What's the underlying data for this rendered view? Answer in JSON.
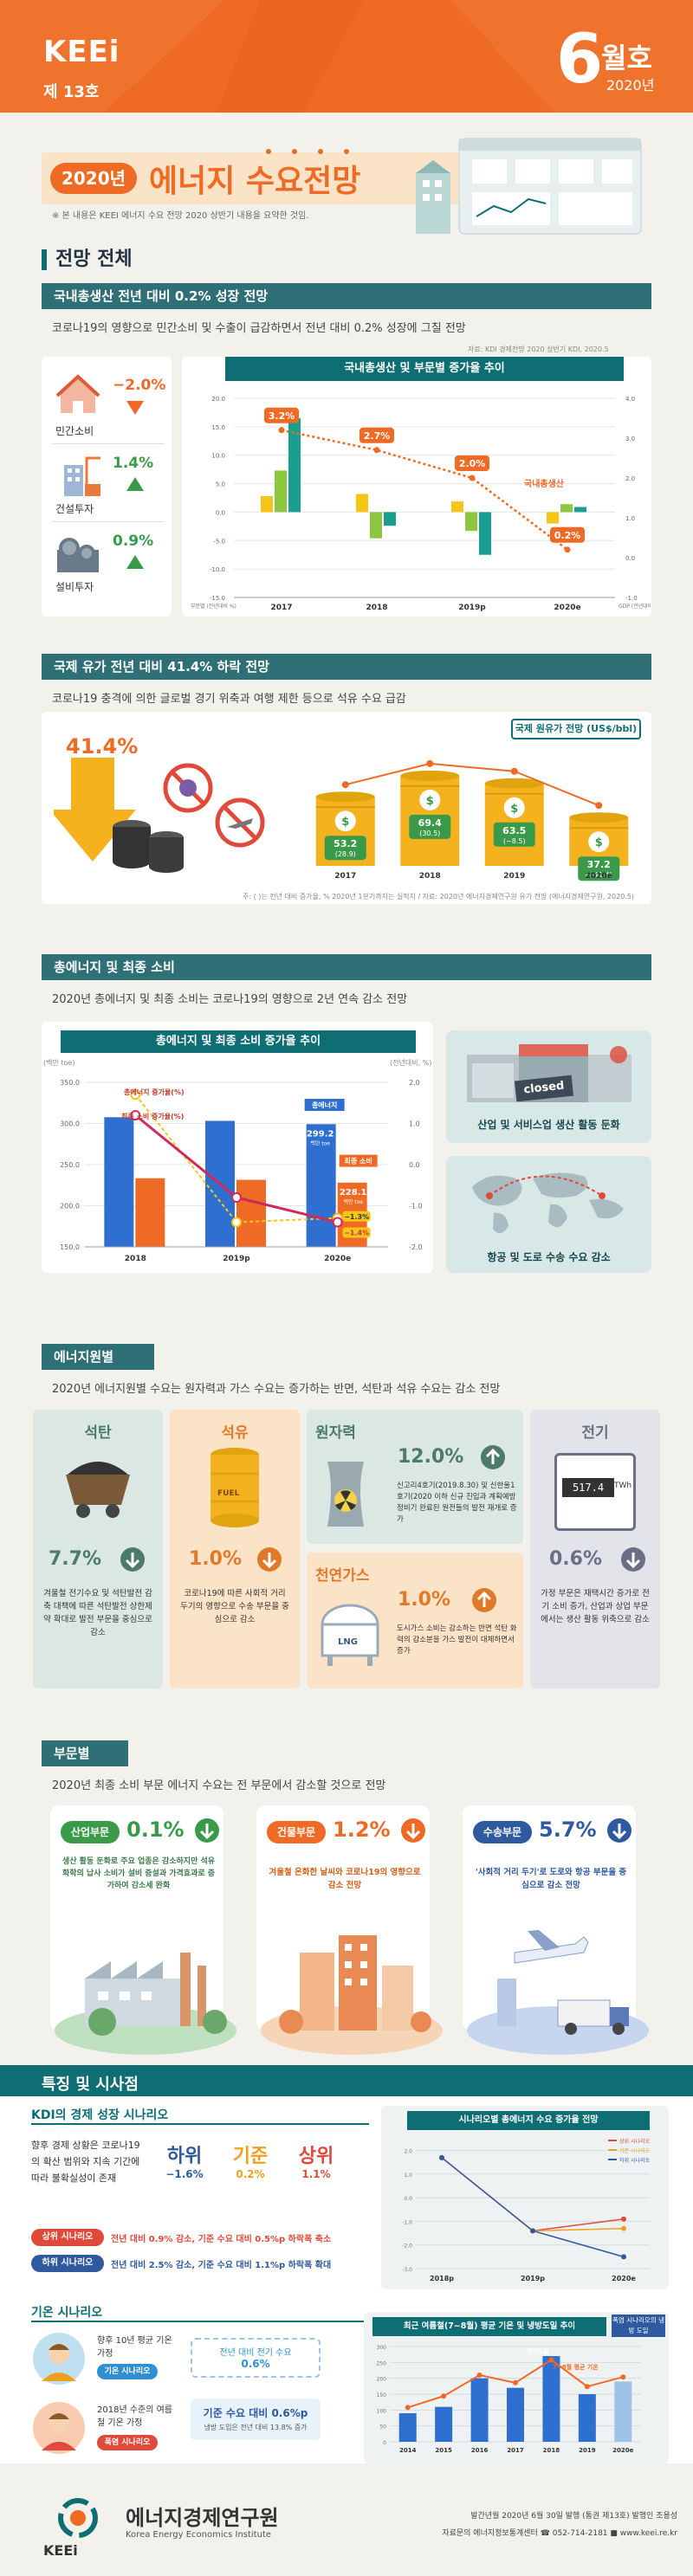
{
  "header": {
    "logo": "KEEi",
    "issue": "제 13호",
    "month_num": "6",
    "month_txt": "월호",
    "year": "2020년"
  },
  "title": {
    "year_badge": "2020년",
    "main": "에너지 수요전망",
    "note": "※ 본 내용은 KEEI 에너지 수요 전망 2020 상반기 내용을 요약한 것임."
  },
  "outlook": {
    "heading": "전망 전체",
    "gdp": {
      "band": "국내총생산 전년 대비 0.2% 성장 전망",
      "desc": "코로나19의 영향으로 민간소비 및 수출이 급감하면서 전년 대비 0.2% 성장에 그칠 전망",
      "source": "자료: KDI 경제전망 2020 상반기 KDI, 2020.5",
      "items": [
        {
          "label": "민간소비",
          "value": "−2.0%"
        },
        {
          "label": "건설투자",
          "value": "1.4%"
        },
        {
          "label": "설비투자",
          "value": "0.9%"
        }
      ]
    },
    "oil": {
      "band": "국제 유가 전년 대비 41.4% 하락 전망",
      "desc": "코로나19 충격에 의한 글로벌 경기 위축과 여행 제한 등으로 석유 수요 급감",
      "big_value": "41.4%",
      "chart_title": "국제 원유가 전망 (US$/bbl)",
      "note": "주: ( )는 전년 대비 증가율, % 2020년 1분기까지는 실적치 / 자료: 2020년 에너지경제연구원 유가 전망 (에너지경제연구원, 2020.5)"
    },
    "total": {
      "band": "총에너지 및 최종 소비",
      "desc": "2020년 총에너지 및 최종 소비는 코로나19의 영향으로 2년 연속 감소 전망",
      "chart_title": "총에너지 및 최종 소비 증가율 추이",
      "y_left": "(백만 toe)",
      "y_right": "(전년대비, %)",
      "legend_total": "총에너지 증가율(%)",
      "legend_final": "최종 소비 증가율(%)",
      "label_total": "총에너지",
      "label_final": "최종 소비",
      "unit": "백만 toe",
      "box1": "산업 및 서비스업 생산 활동 둔화",
      "box1_sign": "closed",
      "box2": "항공 및 도로 수송 수요 감소"
    }
  },
  "sources": {
    "band": "에너지원별",
    "desc": "2020년 에너지원별 수요는 원자력과 가스 수요는 증가하는 반면, 석탄과 석유 수요는 감소 전망",
    "items": [
      {
        "name": "석탄",
        "value": "7.7%",
        "text": "겨울철 전기수요 및 석탄발전 감축 대책에 따른 석탄발전 상한제약 확대로 발전 부문을 중심으로 감소"
      },
      {
        "name": "석유",
        "value": "1.0%",
        "text": "코로나19에 따른 사회적 거리두기의 영향으로 수송 부문을 중심으로 감소",
        "tag": "FUEL"
      },
      {
        "name": "원자력",
        "value": "12.0%",
        "text": "신고리4호기(2019.8.30) 및 신한울1호기(2020 이하 신규 진입과 계획예방정비기 완료된 원전들의 발전 재개로 증가"
      },
      {
        "name": "천연가스",
        "value": "1.0%",
        "text": "도시가스 소비는 감소하는 반면 석탄 화력의 감소분을 가스 발전이 대체하면서 증가",
        "tag": "LNG"
      },
      {
        "name": "전기",
        "value": "0.6%",
        "text": "가정 부문은 재택시간 증가로 전기 소비 증가, 산업과 상업 부문에서는 생산 활동 위축으로 감소",
        "meter": "517.4",
        "meter_unit": "TWh"
      }
    ]
  },
  "sectors": {
    "band": "부문별",
    "desc": "2020년 최종 소비 부문 에너지 수요는 전 부문에서 감소할 것으로 전망",
    "items": [
      {
        "name": "산업부문",
        "value": "0.1%",
        "text": "생산 활동 둔화로 주요 업종은 감소하지만 석유화학의 납사 소비가 설비 증설과 가격효과로 증가하여 감소세 완화"
      },
      {
        "name": "건물부문",
        "value": "1.2%",
        "text": "겨울철 온화한 날씨와 코로나19의 영향으로 감소 전망"
      },
      {
        "name": "수송부문",
        "value": "5.7%",
        "text": "'사회적 거리 두기'로 도로와 항공 부문을 중심으로 감소 전망"
      }
    ]
  },
  "features": {
    "heading": "특징 및 시사점",
    "kdi": {
      "band": "KDI의 경제 성장 시나리오",
      "desc": "향후 경제 상황은 코로나19의 확산 범위와 지속 기간에 따라 불확실성이 존재",
      "scenarios": [
        {
          "name": "하위",
          "value": "−1.6%"
        },
        {
          "name": "기준",
          "value": "0.2%"
        },
        {
          "name": "상위",
          "value": "1.1%"
        }
      ],
      "upper_tag": "상위 시나리오",
      "upper_text": "전년 대비 0.9% 감소, 기준 수요 대비 0.5%p 하락폭 축소",
      "lower_tag": "하위 시나리오",
      "lower_text": "전년 대비 2.5% 감소, 기준 수요 대비 1.1%p 하락폭 확대",
      "chart_title": "시나리오별 총에너지 수요 증가율 전망",
      "legend": [
        "상위 시나리오",
        "기준 시나리오",
        "하위 시나리오"
      ],
      "x": [
        "2018p",
        "2019p",
        "2020e"
      ]
    },
    "climate": {
      "band": "기온 시나리오",
      "p1_label": "향후 10년 평균 기온 가정",
      "p1_tag": "기온 시나리오",
      "p2_label": "2018년 수준의 여름철 기온 가정",
      "p2_tag": "폭염 시나리오",
      "p1_value_title": "전년 대비 전기 수요",
      "p1_value": "0.6%",
      "p2_value_title": "기준 수요 대비 0.6%p",
      "p2_value_note": "냉방 도입은 전년 대비 13.8% 증가",
      "chart_title": "최근 여름철(7~8월) 평균 기온 및 냉방도일 추이",
      "series1": "냉방도일",
      "series2": "7~8월 평균 기온",
      "note_box": "폭염 시나리오의 냉방 도일"
    }
  },
  "footer": {
    "org": "에너지경제연구원",
    "org_en": "Korea Energy Economics Institute",
    "line1": "발간년월 2020년 6월 30일 발행 (통권 제13호) 발행인 조용성",
    "line2": "자료문의 에너지정보통계센터 ☎ 052-714-2181 ■ www.keei.re.kr"
  },
  "chart_data": [
    {
      "type": "bar",
      "title": "국내총생산 및 부문별 증가율 추이",
      "categories": [
        "2017",
        "2018",
        "2019p",
        "2020e"
      ],
      "ylabel": "부문별 증가율(%)",
      "ylim": [
        -15,
        20
      ],
      "y2lim": [
        -1,
        4
      ],
      "series": [
        {
          "name": "민간소비",
          "values": [
            2.8,
            3.2,
            1.9,
            -2.0
          ]
        },
        {
          "name": "건설투자",
          "values": [
            7.3,
            -4.6,
            -3.3,
            1.4
          ]
        },
        {
          "name": "설비투자",
          "values": [
            16.5,
            -2.4,
            -7.5,
            0.9
          ]
        }
      ],
      "line": {
        "name": "국내총생산",
        "values": [
          3.2,
          2.7,
          2.0,
          0.2
        ],
        "labels": [
          "3.2%",
          "2.7%",
          "2.0%",
          "0.2%"
        ]
      },
      "xlabel_left": "부문별 (전년대비 %)",
      "xlabel_right": "GDP (전년대비 %)"
    },
    {
      "type": "bar",
      "title": "국제 원유가 전망 (US$/bbl)",
      "categories": [
        "2017",
        "2018",
        "2019",
        "2020e"
      ],
      "values": [
        53.2,
        69.4,
        63.5,
        37.2
      ],
      "labels": [
        "53.2",
        "69.4",
        "63.5",
        "37.2"
      ],
      "growth": [
        "(28.9)",
        "(30.5)",
        "(−8.5)",
        "(−41.4)"
      ]
    },
    {
      "type": "bar",
      "title": "총에너지 및 최종 소비 증가율 추이",
      "categories": [
        "2018",
        "2019p",
        "2020e"
      ],
      "ylim": [
        150,
        350
      ],
      "y2lim": [
        -2,
        2
      ],
      "yticks": [
        "150.0",
        "200.0",
        "250.0",
        "300.0",
        "350.0"
      ],
      "y2ticks": [
        "-2.0",
        "-1.0",
        "0.0",
        "1.0",
        "2.0"
      ],
      "series": [
        {
          "name": "총에너지",
          "values": [
            307.6,
            303.2,
            299.2
          ]
        },
        {
          "name": "최종 소비",
          "values": [
            233.4,
            231.5,
            228.1
          ]
        }
      ],
      "lines": [
        {
          "name": "총에너지 증가율(%)",
          "values": [
            1.7,
            -1.4,
            -1.3
          ]
        },
        {
          "name": "최종 소비 증가율(%)",
          "values": [
            1.2,
            -0.8,
            -1.4
          ]
        }
      ],
      "callouts": [
        "299.2",
        "228.1",
        "−1.3%",
        "−1.4%"
      ]
    },
    {
      "type": "line",
      "title": "시나리오별 총에너지 수요 증가율 전망",
      "x": [
        "2018p",
        "2019p",
        "2020e"
      ],
      "series": [
        {
          "name": "상위 시나리오",
          "values": [
            1.7,
            -1.4,
            -0.9
          ]
        },
        {
          "name": "기준 시나리오",
          "values": [
            1.7,
            -1.4,
            -1.3
          ]
        },
        {
          "name": "하위 시나리오",
          "values": [
            1.7,
            -1.4,
            -2.5
          ]
        }
      ]
    },
    {
      "type": "bar",
      "title": "최근 여름철(7~8월) 평균 기온 및 냉방도일 추이",
      "categories": [
        "2014",
        "2015",
        "2016",
        "2017",
        "2018",
        "2019",
        "2020e"
      ],
      "series": [
        {
          "name": "냉방도일",
          "values": [
            90,
            110,
            200,
            170,
            270,
            150,
            190
          ]
        }
      ],
      "line": {
        "name": "7~8월 평균 기온",
        "values": [
          24.8,
          25.4,
          26.5,
          26.1,
          27.3,
          25.9,
          26.4
        ]
      }
    }
  ]
}
